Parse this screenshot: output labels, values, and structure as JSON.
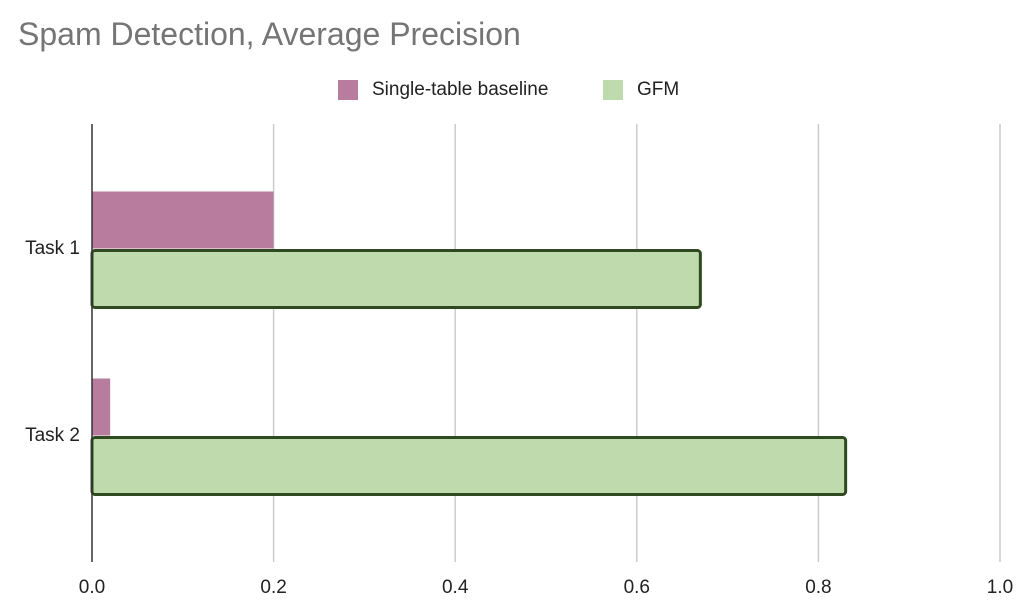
{
  "chart_data": {
    "type": "bar",
    "orientation": "horizontal",
    "title": "Spam Detection, Average Precision",
    "categories": [
      "Task 1",
      "Task 2"
    ],
    "series": [
      {
        "name": "Single-table baseline",
        "values": [
          0.2,
          0.02
        ],
        "color": "#b87c9e",
        "border": "none"
      },
      {
        "name": "GFM",
        "values": [
          0.67,
          0.83
        ],
        "color": "#bfdaad",
        "border": "#2f4a20"
      }
    ],
    "xlim": [
      0,
      1.0
    ],
    "xticks": [
      "0.0",
      "0.2",
      "0.4",
      "0.6",
      "0.8",
      "1.0"
    ],
    "xtick_values": [
      0,
      0.2,
      0.4,
      0.6,
      0.8,
      1.0
    ],
    "xlabel": "",
    "ylabel": "",
    "grid": "vertical",
    "legend_position": "top"
  }
}
